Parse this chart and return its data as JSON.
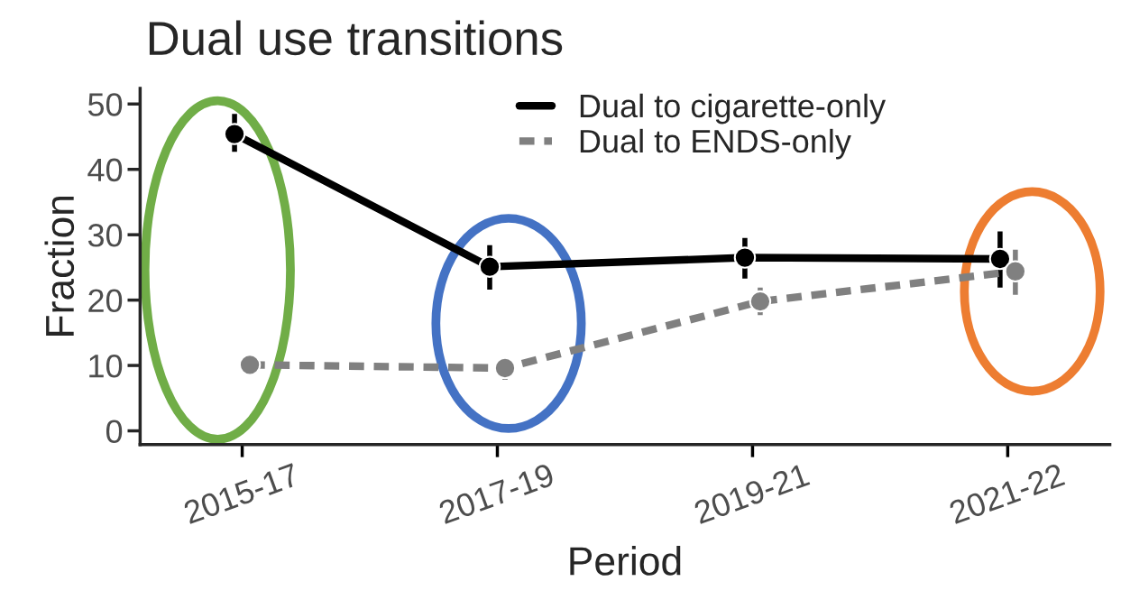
{
  "chart_data": {
    "type": "line",
    "title": "Dual use transitions",
    "xlabel": "Period",
    "ylabel": "Fraction",
    "categories": [
      "2015-17",
      "2017-19",
      "2019-21",
      "2021-22"
    ],
    "ylim": [
      -2.1,
      52.4
    ],
    "yticks": [
      0,
      10,
      20,
      30,
      40,
      50
    ],
    "series": [
      {
        "name": "Dual to cigarette-only",
        "color": "#000000",
        "line_style": "solid",
        "values": [
          45.4,
          25.1,
          26.5,
          26.3
        ],
        "errors": [
          [
            42.7,
            48.5
          ],
          [
            21.6,
            28.4
          ],
          [
            23.3,
            29.5
          ],
          [
            21.9,
            30.5
          ]
        ]
      },
      {
        "name": "Dual to ENDS-only",
        "color": "#808080",
        "line_style": "dashed",
        "values": [
          10.1,
          9.6,
          19.8,
          24.4
        ],
        "errors": [
          [
            8.9,
            11.1
          ],
          [
            7.8,
            11.1
          ],
          [
            17.7,
            21.9
          ],
          [
            20.8,
            27.7
          ]
        ]
      }
    ],
    "marker": "circle",
    "grid": false,
    "legend": "top"
  }
}
